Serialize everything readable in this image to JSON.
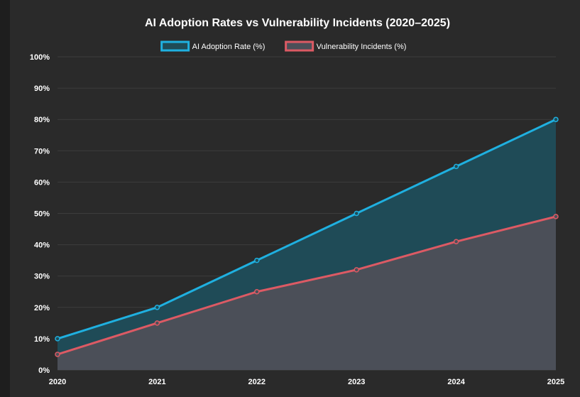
{
  "chart_data": {
    "type": "area",
    "title": "AI Adoption Rates vs Vulnerability Incidents (2020–2025)",
    "categories": [
      "2020",
      "2021",
      "2022",
      "2023",
      "2024",
      "2025"
    ],
    "series": [
      {
        "name": "AI Adoption Rate (%)",
        "values": [
          10,
          20,
          35,
          50,
          65,
          80
        ],
        "color": "#1fb0e0",
        "fill": "#1f4b57"
      },
      {
        "name": "Vulnerability Incidents (%)",
        "values": [
          5,
          15,
          25,
          32,
          41,
          49
        ],
        "color": "#dc5a64",
        "fill": "#4b4f58"
      }
    ],
    "ylim": [
      0,
      100
    ],
    "yticks": [
      0,
      10,
      20,
      30,
      40,
      50,
      60,
      70,
      80,
      90,
      100
    ],
    "ytick_suffix": "%",
    "grid": true,
    "legend": "top-center",
    "background": "#2a2a2a",
    "text_color": "#ffffff",
    "grid_color": "#3d3d3d"
  }
}
